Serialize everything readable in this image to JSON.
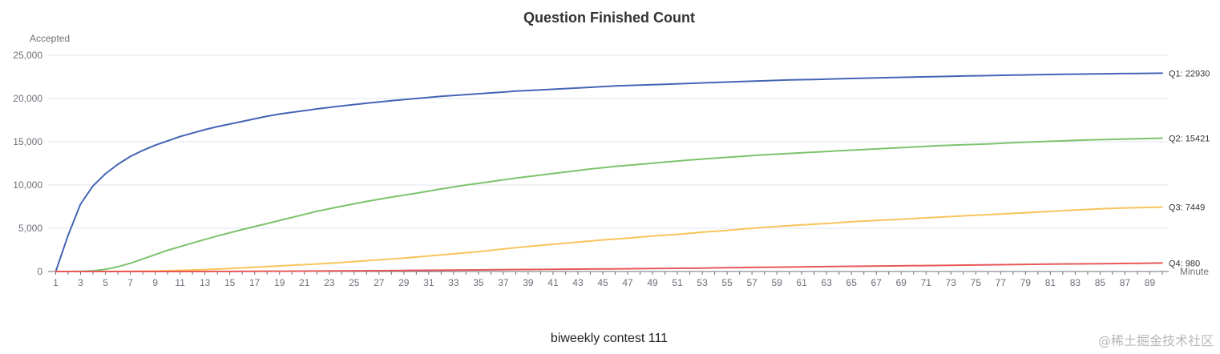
{
  "chart_data": {
    "type": "line",
    "title": "Question Finished Count",
    "subtitle": "biweekly contest 111",
    "ylabel": "Accepted",
    "xlabel": "Minute",
    "ylim": [
      0,
      25000
    ],
    "y_ticks": [
      "0",
      "5,000",
      "10,000",
      "15,000",
      "20,000",
      "25,000"
    ],
    "y_tick_values": [
      0,
      5000,
      10000,
      15000,
      20000,
      25000
    ],
    "x_range": [
      1,
      90
    ],
    "x_tick_values": [
      1,
      3,
      5,
      7,
      9,
      11,
      13,
      15,
      17,
      19,
      21,
      23,
      25,
      27,
      29,
      31,
      33,
      35,
      37,
      39,
      41,
      43,
      45,
      47,
      49,
      51,
      53,
      55,
      57,
      59,
      61,
      63,
      65,
      67,
      69,
      71,
      73,
      75,
      77,
      79,
      81,
      83,
      85,
      87,
      89
    ],
    "grid": true,
    "legend": "none",
    "series": [
      {
        "name": "Q1",
        "end_label": "Q1: 22930",
        "color": "#4565b5",
        "x": [
          1,
          2,
          3,
          4,
          5,
          6,
          7,
          8,
          9,
          10,
          11,
          12,
          13,
          14,
          15,
          16,
          17,
          18,
          19,
          20,
          22,
          24,
          26,
          28,
          30,
          32,
          34,
          36,
          38,
          40,
          42,
          44,
          46,
          48,
          50,
          52,
          54,
          56,
          58,
          60,
          62,
          64,
          66,
          68,
          70,
          72,
          74,
          76,
          78,
          80,
          82,
          84,
          86,
          88,
          90
        ],
        "values": [
          0,
          4200,
          7800,
          9900,
          11300,
          12400,
          13300,
          14000,
          14600,
          15100,
          15600,
          16000,
          16400,
          16750,
          17050,
          17350,
          17650,
          17950,
          18200,
          18400,
          18800,
          19150,
          19450,
          19750,
          20000,
          20250,
          20450,
          20650,
          20850,
          21000,
          21150,
          21300,
          21450,
          21550,
          21650,
          21750,
          21850,
          21950,
          22050,
          22150,
          22200,
          22280,
          22350,
          22420,
          22480,
          22540,
          22600,
          22650,
          22700,
          22750,
          22800,
          22830,
          22870,
          22900,
          22930
        ]
      },
      {
        "name": "Q2",
        "end_label": "Q2: 15421",
        "color": "#7cc36c",
        "x": [
          1,
          2,
          3,
          4,
          5,
          6,
          7,
          8,
          9,
          10,
          12,
          14,
          16,
          18,
          20,
          22,
          24,
          26,
          28,
          30,
          32,
          34,
          36,
          38,
          40,
          42,
          44,
          46,
          48,
          50,
          52,
          54,
          56,
          58,
          60,
          62,
          64,
          66,
          68,
          70,
          72,
          74,
          76,
          78,
          80,
          82,
          84,
          86,
          88,
          90
        ],
        "values": [
          0,
          0,
          20,
          80,
          250,
          550,
          950,
          1450,
          1950,
          2450,
          3300,
          4100,
          4850,
          5550,
          6250,
          6950,
          7550,
          8100,
          8600,
          9050,
          9550,
          10000,
          10400,
          10800,
          11150,
          11500,
          11850,
          12150,
          12400,
          12650,
          12900,
          13100,
          13300,
          13500,
          13650,
          13800,
          13950,
          14100,
          14250,
          14400,
          14550,
          14650,
          14750,
          14900,
          15000,
          15100,
          15200,
          15280,
          15350,
          15421
        ]
      },
      {
        "name": "Q3",
        "end_label": "Q3: 7449",
        "color": "#f8c45c",
        "x": [
          1,
          3,
          5,
          7,
          9,
          11,
          13,
          15,
          17,
          19,
          21,
          23,
          25,
          27,
          29,
          31,
          33,
          35,
          37,
          39,
          41,
          43,
          45,
          47,
          49,
          51,
          53,
          55,
          57,
          59,
          61,
          63,
          65,
          67,
          69,
          71,
          73,
          75,
          77,
          79,
          81,
          83,
          85,
          87,
          89,
          90
        ],
        "values": [
          0,
          0,
          0,
          20,
          60,
          130,
          220,
          350,
          500,
          650,
          800,
          950,
          1150,
          1350,
          1550,
          1800,
          2050,
          2300,
          2600,
          2900,
          3150,
          3400,
          3650,
          3850,
          4100,
          4300,
          4550,
          4750,
          5000,
          5200,
          5400,
          5550,
          5750,
          5900,
          6050,
          6200,
          6350,
          6500,
          6650,
          6800,
          6950,
          7100,
          7250,
          7350,
          7420,
          7449
        ]
      },
      {
        "name": "Q4",
        "end_label": "Q4: 980",
        "color": "#e85858",
        "x": [
          1,
          5,
          9,
          13,
          17,
          21,
          25,
          29,
          33,
          37,
          41,
          45,
          49,
          53,
          57,
          61,
          65,
          69,
          73,
          77,
          81,
          85,
          89,
          90
        ],
        "values": [
          0,
          0,
          0,
          0,
          20,
          50,
          80,
          120,
          170,
          210,
          250,
          300,
          350,
          400,
          470,
          540,
          600,
          660,
          720,
          790,
          850,
          900,
          960,
          980
        ]
      }
    ]
  },
  "watermark": "@稀土掘金技术社区"
}
